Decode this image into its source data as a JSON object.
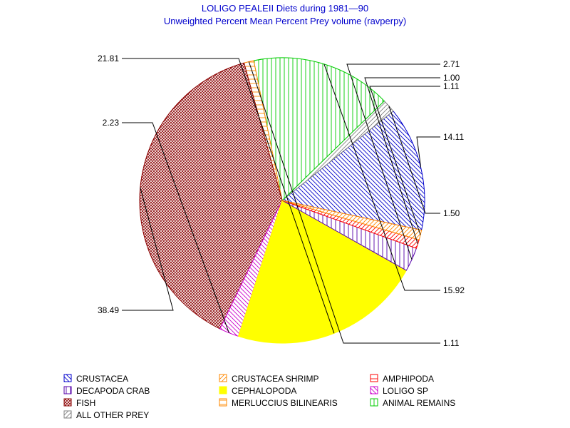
{
  "chart_data": {
    "type": "pie",
    "title": "LOLIGO PEALEII Diets during 1981—90",
    "subtitle": "Unweighted Percent Mean Percent Prey  volume (ravperpy)",
    "slices": [
      {
        "name": "CRUSTACEA",
        "value": 14.11,
        "label": "14.11",
        "color": "#0000cc",
        "pattern": "diag-down"
      },
      {
        "name": "ALL OTHER PREY",
        "value": 1.5,
        "label": "1.50",
        "color": "#808080",
        "pattern": "diag-up"
      },
      {
        "name": "ANIMAL REMAINS",
        "value": 15.92,
        "label": "15.92",
        "color": "#00cc00",
        "pattern": "vertical"
      },
      {
        "name": "MERLUCCIUS BILINEARIS",
        "value": 1.11,
        "label": "1.11",
        "color": "#ff8800",
        "pattern": "horizontal"
      },
      {
        "name": "FISH",
        "value": 38.49,
        "label": "38.49",
        "color": "#8b0000",
        "pattern": "crosshatch"
      },
      {
        "name": "LOLIGO SP",
        "value": 2.23,
        "label": "2.23",
        "color": "#cc00cc",
        "pattern": "diag-down"
      },
      {
        "name": "CEPHALOPODA",
        "value": 21.81,
        "label": "21.81",
        "color": "#ffff00",
        "pattern": "solid"
      },
      {
        "name": "DECAPODA CRAB",
        "value": 2.71,
        "label": "2.71",
        "color": "#5500aa",
        "pattern": "vertical"
      },
      {
        "name": "AMPHIPODA",
        "value": 1.0,
        "label": "1.00",
        "color": "#ff0000",
        "pattern": "diag-up"
      },
      {
        "name": "CRUSTACEA SHRIMP",
        "value": 1.11,
        "label": "1.11",
        "color": "#ff8800",
        "pattern": "diag-up"
      }
    ],
    "legend": [
      {
        "name": "CRUSTACEA",
        "color": "#0000cc",
        "pattern": "diag-down"
      },
      {
        "name": "CRUSTACEA SHRIMP",
        "color": "#ff8800",
        "pattern": "diag-up"
      },
      {
        "name": "AMPHIPODA",
        "color": "#ff0000",
        "pattern": "horizontal"
      },
      {
        "name": "DECAPODA CRAB",
        "color": "#5500aa",
        "pattern": "vertical"
      },
      {
        "name": "CEPHALOPODA",
        "color": "#ffff00",
        "pattern": "solid"
      },
      {
        "name": "LOLIGO SP",
        "color": "#cc00cc",
        "pattern": "diag-down"
      },
      {
        "name": "FISH",
        "color": "#8b0000",
        "pattern": "crosshatch"
      },
      {
        "name": "MERLUCCIUS BILINEARIS",
        "color": "#ff8800",
        "pattern": "horizontal"
      },
      {
        "name": "ANIMAL REMAINS",
        "color": "#00cc00",
        "pattern": "vertical"
      },
      {
        "name": "ALL OTHER PREY",
        "color": "#808080",
        "pattern": "diag-up"
      }
    ],
    "legend_placement": "bottom"
  }
}
